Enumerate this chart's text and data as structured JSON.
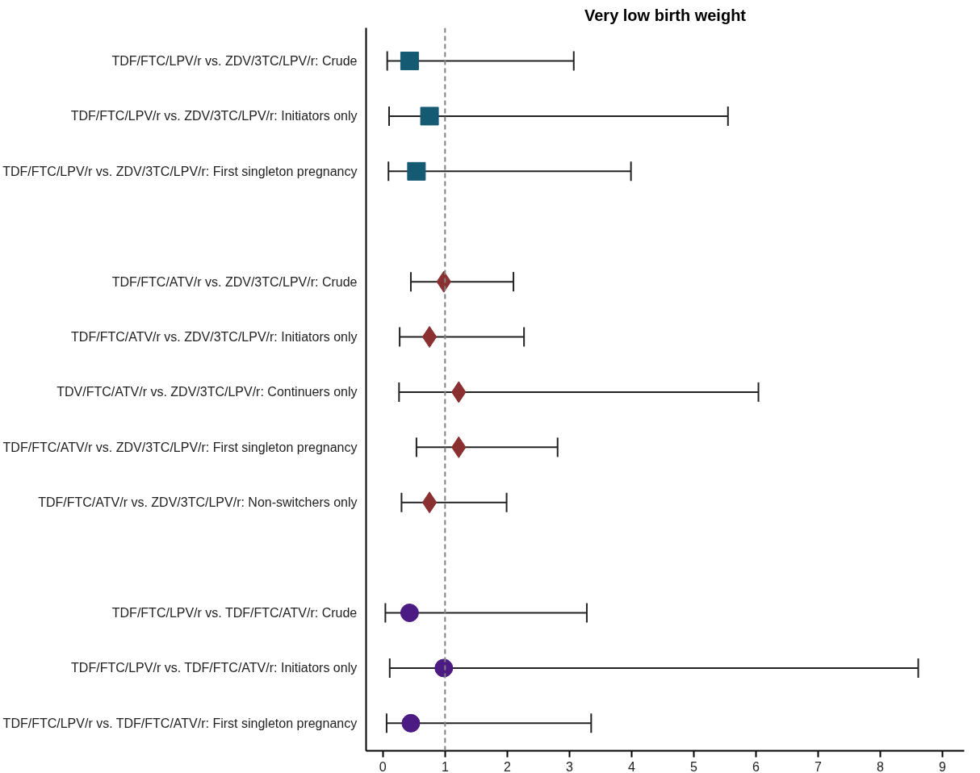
{
  "chart_data": {
    "type": "scatter",
    "orientation": "horizontal",
    "title": "Very low birth weight",
    "categories": [
      "TDF/FTC/LPV/r vs. ZDV/3TC/LPV/r: Crude",
      "TDF/FTC/LPV/r vs. ZDV/3TC/LPV/r: Initiators only",
      "TDF/FTC/LPV/r vs. ZDV/3TC/LPV/r: First singleton pregnancy",
      null,
      "TDF/FTC/ATV/r vs. ZDV/3TC/LPV/r: Crude",
      "TDF/FTC/ATV/r vs. ZDV/3TC/LPV/r: Initiators only",
      "TDV/FTC/ATV/r vs. ZDV/3TC/LPV/r: Continuers only",
      "TDF/FTC/ATV/r vs. ZDV/3TC/LPV/r: First singleton pregnancy",
      "TDF/FTC/ATV/r vs. ZDV/3TC/LPV/r: Non-switchers only",
      null,
      "TDF/FTC/LPV/r vs. TDF/FTC/ATV/r: Crude",
      "TDF/FTC/LPV/r vs. TDF/FTC/ATV/r: Initiators only",
      "TDF/FTC/LPV/r vs. TDF/FTC/ATV/r: First singleton pregnancy"
    ],
    "series": [
      {
        "color": "#145a73",
        "marker": "square",
        "values": [
          0.43,
          0.75,
          0.54,
          null,
          null,
          null,
          null,
          null,
          null,
          null,
          null,
          null,
          null
        ],
        "errors": [
          [
            0.07,
            3.07
          ],
          [
            0.1,
            5.55
          ],
          [
            0.09,
            3.99
          ],
          null,
          null,
          null,
          null,
          null,
          null,
          null,
          null,
          null,
          null
        ]
      },
      {
        "color": "#8b3030",
        "marker": "diamond",
        "values": [
          null,
          null,
          null,
          null,
          0.98,
          0.75,
          1.22,
          1.22,
          0.75,
          null,
          null,
          null,
          null
        ],
        "errors": [
          null,
          null,
          null,
          null,
          [
            0.45,
            2.1
          ],
          [
            0.27,
            2.27
          ],
          [
            0.26,
            6.04
          ],
          [
            0.54,
            2.81
          ],
          [
            0.3,
            1.99
          ],
          null,
          null,
          null,
          null
        ]
      },
      {
        "color": "#4b1a82",
        "marker": "circle",
        "values": [
          null,
          null,
          null,
          null,
          null,
          null,
          null,
          null,
          null,
          null,
          0.43,
          0.98,
          0.45
        ],
        "errors": [
          null,
          null,
          null,
          null,
          null,
          null,
          null,
          null,
          null,
          null,
          [
            0.04,
            3.28
          ],
          [
            0.11,
            8.61
          ],
          [
            0.06,
            3.35
          ]
        ]
      }
    ],
    "xlim": [
      -0.27,
      9.35
    ],
    "xticks": [
      0,
      1,
      2,
      3,
      4,
      5,
      6,
      7,
      8,
      9
    ],
    "ref_lines": [
      {
        "axis": "x",
        "value": 1,
        "color": "#808080",
        "line_style": "dashed"
      }
    ],
    "grid": false
  }
}
